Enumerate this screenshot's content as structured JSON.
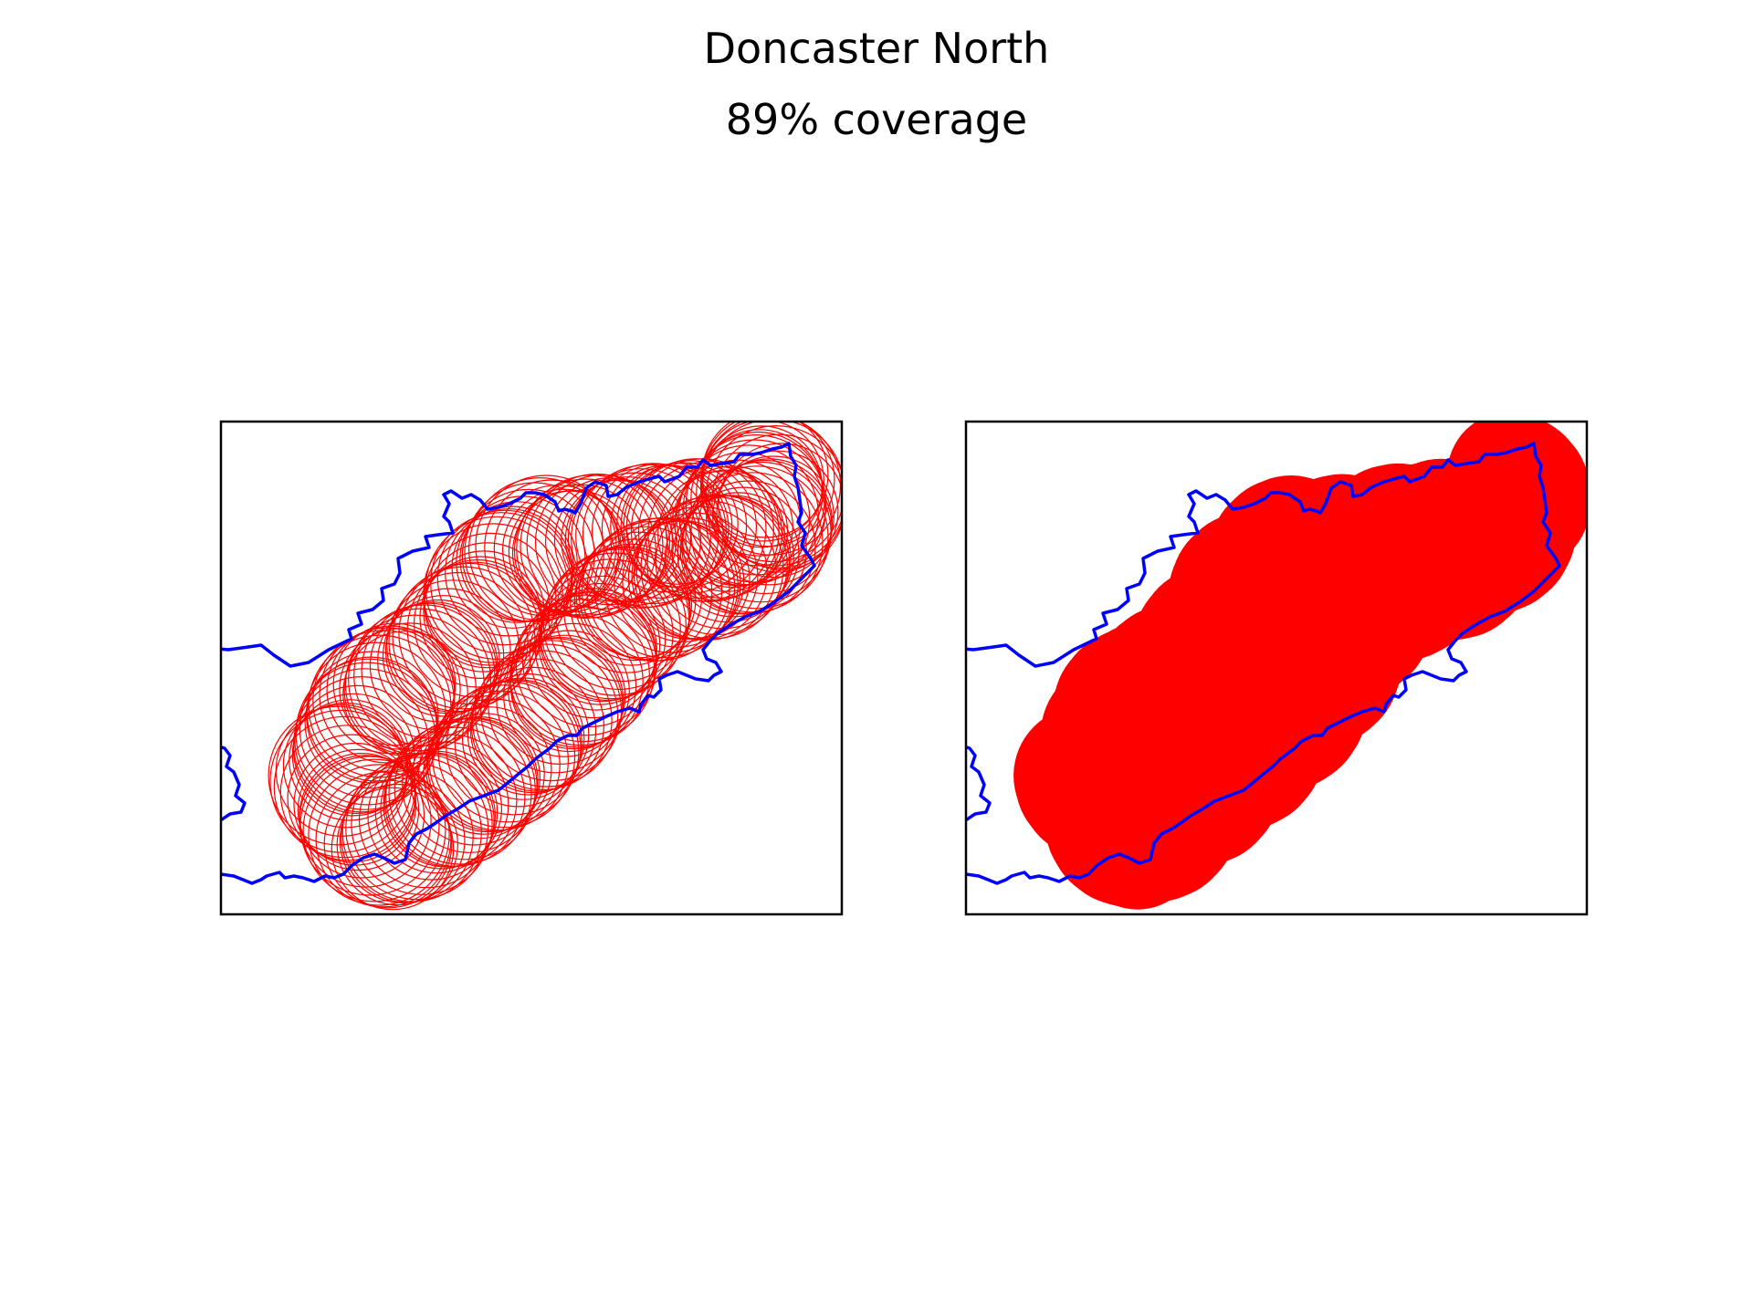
{
  "figure": {
    "title": "Doncaster North",
    "subtitle": "89% coverage"
  },
  "colors": {
    "boundary": "#0000ff",
    "coverage": "#ff0000",
    "frame": "#000000",
    "background": "#ffffff"
  },
  "panels": [
    {
      "name": "left-panel",
      "style": "circle-outlines"
    },
    {
      "name": "right-panel",
      "style": "filled-circles"
    }
  ],
  "chart_data": [
    {
      "type": "map",
      "subplot": 1,
      "rendering": "circle-outlines",
      "axes_visible": false
    },
    {
      "type": "map",
      "subplot": 2,
      "rendering": "filled-circles",
      "axes_visible": false
    }
  ]
}
